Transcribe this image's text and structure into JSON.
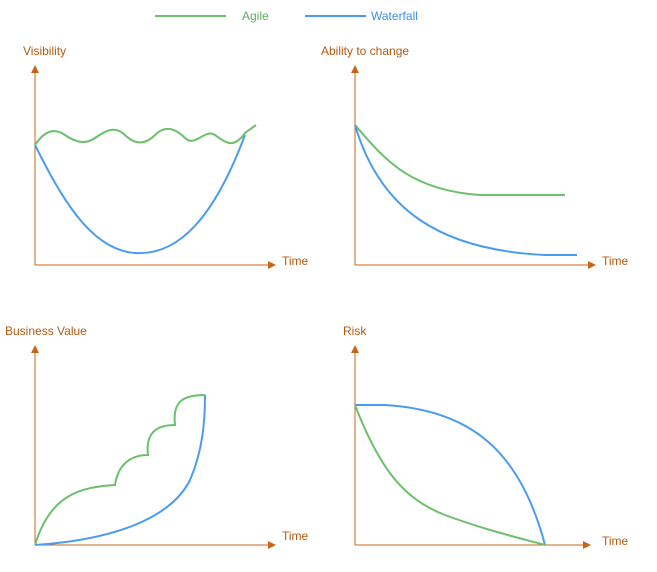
{
  "legend": {
    "agile": {
      "label": "Agile",
      "color": "#6cbf6c"
    },
    "waterfall": {
      "label": "Waterfall",
      "color": "#4a9cf2"
    }
  },
  "axis_color": "#c8651a",
  "panels": [
    {
      "id": "visibility",
      "ylabel": "Visibility",
      "xlabel": "Time"
    },
    {
      "id": "ability",
      "ylabel": "Ability to change",
      "xlabel": "Time"
    },
    {
      "id": "value",
      "ylabel": "Business Value",
      "xlabel": "Time"
    },
    {
      "id": "risk",
      "ylabel": "Risk",
      "xlabel": "Time"
    }
  ]
}
